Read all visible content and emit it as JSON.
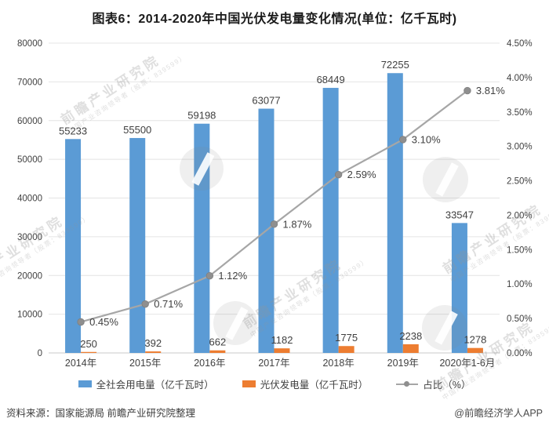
{
  "title": "图表6：2014-2020年中国光伏发电量变化情况(单位：亿千瓦时)",
  "chart_data": {
    "type": "bar",
    "subtype": "combo-bar-line-dual-axis",
    "title": "图表6：2014-2020年中国光伏发电量变化情况(单位：亿千瓦时)",
    "categories": [
      "2014年",
      "2015年",
      "2016年",
      "2017年",
      "2018年",
      "2019年",
      "2020年1-6月"
    ],
    "series": [
      {
        "name": "全社会用电量（亿千瓦时）",
        "kind": "bar",
        "axis": "left",
        "color": "#5B9BD5",
        "values": [
          55233,
          55500,
          59198,
          63077,
          68449,
          72255,
          33547
        ],
        "labels": [
          "55233",
          "55500",
          "59198",
          "63077",
          "68449",
          "72255",
          "33547"
        ]
      },
      {
        "name": "光伏发电量（亿千瓦时）",
        "kind": "bar",
        "axis": "left",
        "color": "#ED7D31",
        "values": [
          250,
          392,
          662,
          1182,
          1775,
          2238,
          1278
        ],
        "labels": [
          "250",
          "392",
          "662",
          "1182",
          "1775",
          "2238",
          "1278"
        ]
      },
      {
        "name": "占比（%）",
        "kind": "line",
        "axis": "right",
        "color": "#A6A6A6",
        "marker_color": "#8F8F8F",
        "values": [
          0.45,
          0.71,
          1.12,
          1.87,
          2.59,
          3.1,
          3.81
        ],
        "labels": [
          "0.45%",
          "0.71%",
          "1.12%",
          "1.87%",
          "2.59%",
          "3.10%",
          "3.81%"
        ]
      }
    ],
    "left_axis": {
      "min": 0,
      "max": 80000,
      "step": 10000,
      "tick_labels": [
        "0",
        "10000",
        "20000",
        "30000",
        "40000",
        "50000",
        "60000",
        "70000",
        "80000"
      ]
    },
    "right_axis": {
      "min": 0,
      "max": 4.5,
      "step": 0.5,
      "tick_labels": [
        "0.00%",
        "0.50%",
        "1.00%",
        "1.50%",
        "2.00%",
        "2.50%",
        "3.00%",
        "3.50%",
        "4.00%",
        "4.50%"
      ]
    },
    "grid": true,
    "legend_position": "bottom",
    "colors": {
      "grid_line": "#e4e4e4",
      "baseline": "#c9c9c9",
      "text": "#404040"
    }
  },
  "footer": {
    "source": "资料来源：国家能源局 前瞻产业研究院整理",
    "credit": "@前瞻经济学人APP"
  },
  "watermark": {
    "line1": "前瞻产业研究院",
    "line2": "中国产业咨询领导者（股票：839599）",
    "logo_icon": "qianzhan-logo-circle-icon"
  }
}
